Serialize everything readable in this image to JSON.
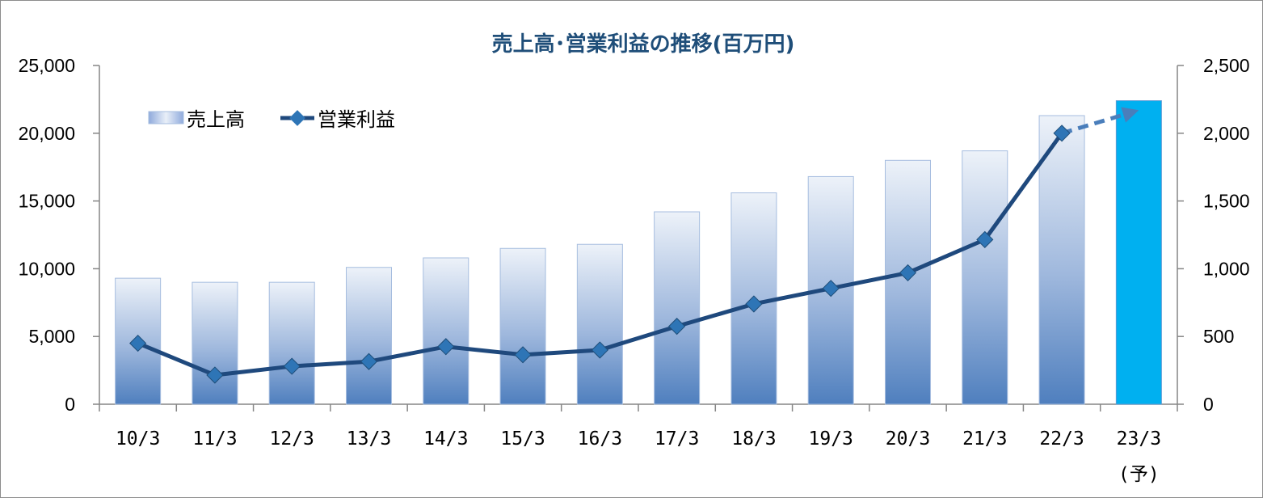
{
  "chart_data": {
    "type": "bar",
    "title": "売上高･営業利益の推移(百万円)",
    "categories": [
      "10/3",
      "11/3",
      "12/3",
      "13/3",
      "14/3",
      "15/3",
      "16/3",
      "17/3",
      "18/3",
      "19/3",
      "20/3",
      "21/3",
      "22/3",
      "23/3"
    ],
    "category_note": "(予)",
    "y_left": {
      "ylim": [
        0,
        25000
      ],
      "ticks": [
        "0",
        "5,000",
        "10,000",
        "15,000",
        "20,000",
        "25,000"
      ]
    },
    "y_right": {
      "ylim": [
        0,
        2500
      ],
      "ticks": [
        "0",
        "500",
        "1,000",
        "1,500",
        "2,000",
        "2,500"
      ]
    },
    "series": [
      {
        "name": "売上高",
        "type": "bar",
        "axis": "left",
        "values": [
          9300,
          9000,
          9000,
          10100,
          10800,
          11500,
          11800,
          14200,
          15600,
          16800,
          18000,
          18700,
          21300,
          22400
        ],
        "highlight_last_color": "#00b0f0"
      },
      {
        "name": "営業利益",
        "type": "line",
        "axis": "right",
        "values": [
          450,
          215,
          280,
          315,
          425,
          365,
          400,
          575,
          740,
          855,
          970,
          1215,
          2000,
          2170
        ],
        "color": "#1f497d",
        "marker_color": "#2e75b6",
        "forecast_color": "#4a7ebb"
      }
    ],
    "legend_position": "top-left",
    "grid": false
  }
}
